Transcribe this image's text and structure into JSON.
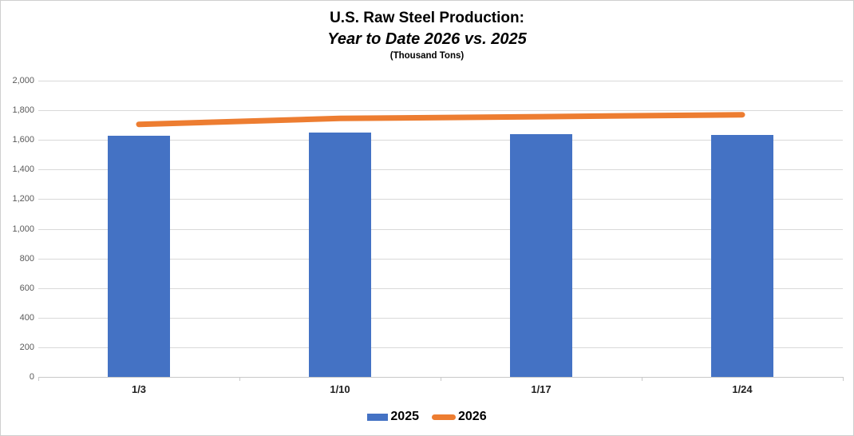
{
  "header": {
    "title": "U.S. Raw Steel Production:",
    "subtitle": "Year to Date 2026 vs. 2025",
    "units": "(Thousand Tons)"
  },
  "chart_data": {
    "type": "bar",
    "title": "U.S. Raw Steel Production:",
    "subtitle": "Year to Date 2026 vs. 2025",
    "units_label": "(Thousand Tons)",
    "categories": [
      "1/3",
      "1/10",
      "1/17",
      "1/24"
    ],
    "series": [
      {
        "name": "2025",
        "type": "bar",
        "color": "#4472C4",
        "values": [
          1630,
          1650,
          1640,
          1635
        ]
      },
      {
        "name": "2026",
        "type": "line",
        "color": "#ED7D31",
        "values": [
          1705,
          1745,
          1757,
          1770
        ]
      }
    ],
    "ylim": [
      0,
      2000
    ],
    "ytick_step": 200,
    "ytick_labels": [
      "0",
      "200",
      "400",
      "600",
      "800",
      "1,000",
      "1,200",
      "1,400",
      "1,600",
      "1,800",
      "2,000"
    ],
    "grid": "on",
    "legend_position": "bottom",
    "colors": {
      "bar": "#4472C4",
      "line": "#ED7D31",
      "gridline": "#D9D9D9",
      "axis_labels": "#595959",
      "title_text": "#000000"
    }
  }
}
